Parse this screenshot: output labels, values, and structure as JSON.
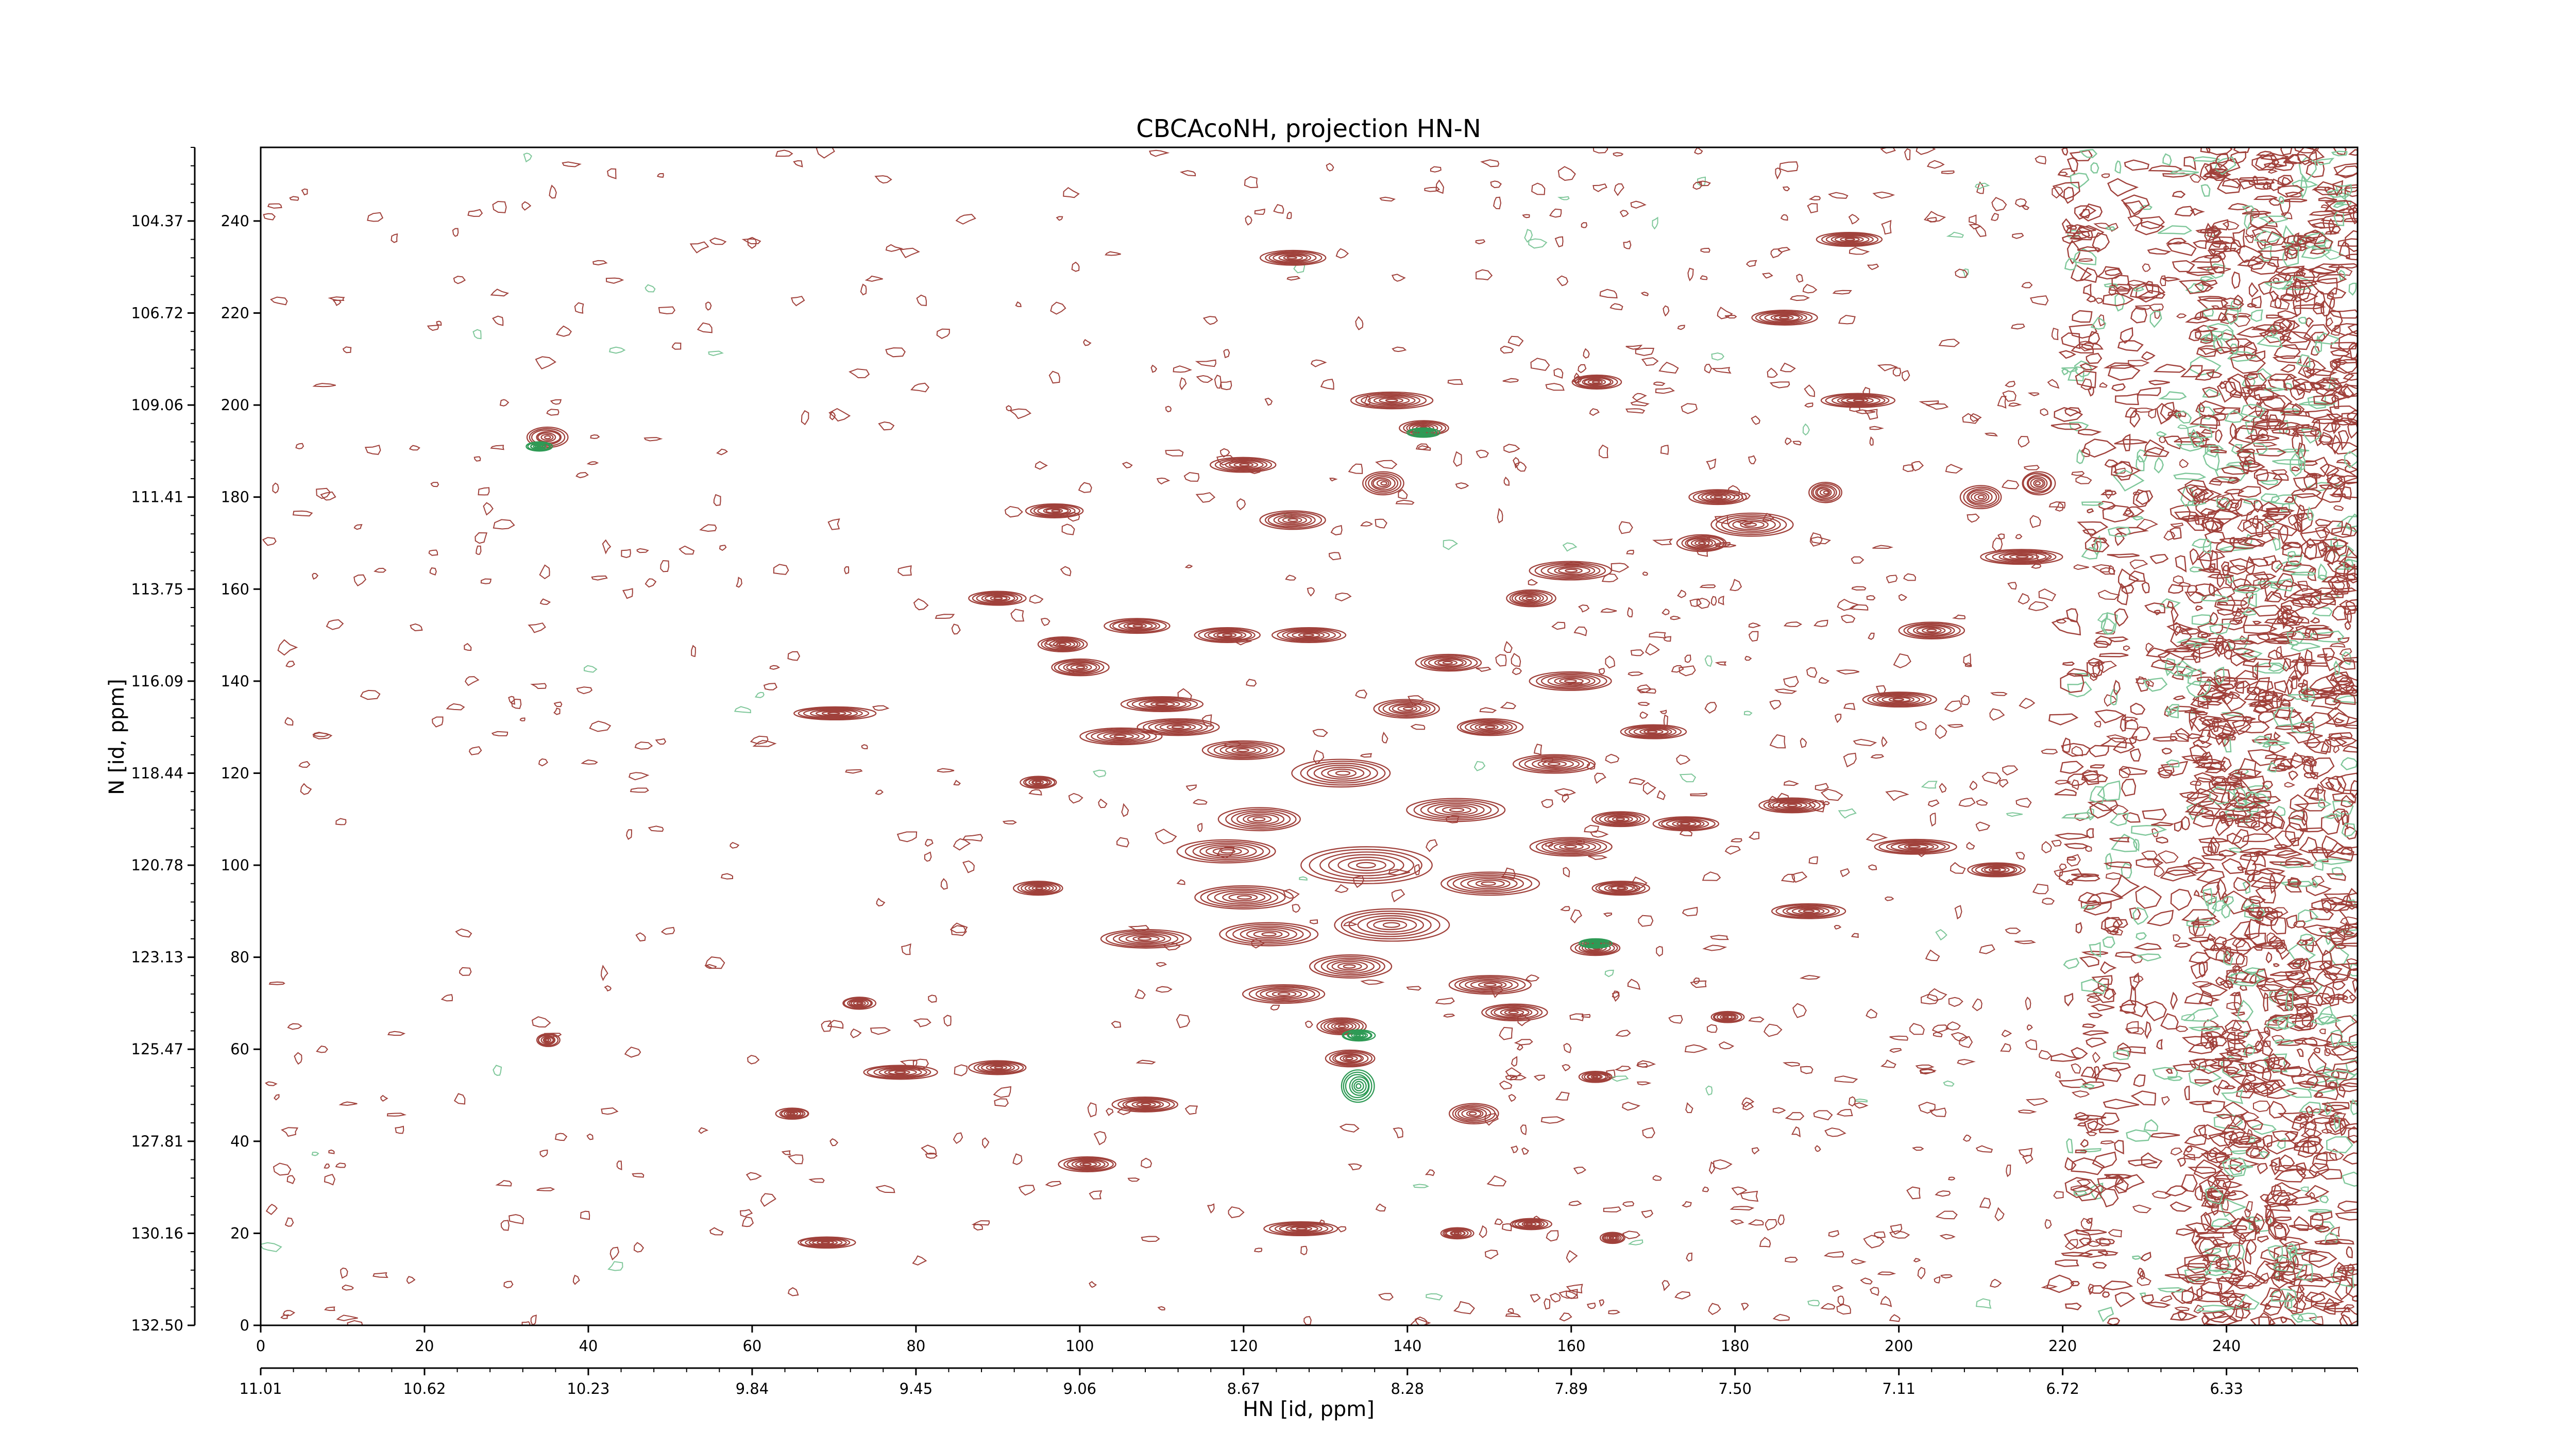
{
  "chart_data": {
    "type": "contour",
    "title": "CBCAcoNH, projection HN-N",
    "xlabel": "HN [id, ppm]",
    "ylabel": "N [id, ppm]",
    "xlim": [
      0,
      256
    ],
    "ylim": [
      0,
      256
    ],
    "x_index_ticks": [
      "0",
      "20",
      "40",
      "60",
      "80",
      "100",
      "120",
      "140",
      "160",
      "180",
      "200",
      "220",
      "240"
    ],
    "x_ppm_ticks": [
      "11.01",
      "10.62",
      "10.23",
      "9.84",
      "9.45",
      "9.06",
      "8.67",
      "8.28",
      "7.89",
      "7.50",
      "7.11",
      "6.72",
      "6.33"
    ],
    "y_index_ticks": [
      "0",
      "20",
      "40",
      "60",
      "80",
      "100",
      "120",
      "140",
      "160",
      "180",
      "200",
      "220",
      "240"
    ],
    "y_ppm_ticks": [
      "132.50",
      "130.16",
      "127.81",
      "125.47",
      "123.13",
      "120.78",
      "118.44",
      "116.09",
      "113.75",
      "111.41",
      "109.06",
      "106.72",
      "104.37"
    ],
    "grid": false,
    "legend": "none",
    "colors": {
      "positive": "#a0413b",
      "negative": "#2e9a55",
      "negative_light": "#7fc79a",
      "axes": "#000000"
    },
    "peaks": [
      {
        "x": 35,
        "y": 193,
        "w": 2.5,
        "h": 2.2,
        "sign": "pos"
      },
      {
        "x": 34,
        "y": 191,
        "w": 1.6,
        "h": 1.0,
        "sign": "neg"
      },
      {
        "x": 35,
        "y": 62,
        "w": 1.4,
        "h": 1.4,
        "sign": "pos"
      },
      {
        "x": 70,
        "y": 133,
        "w": 5,
        "h": 1.4,
        "sign": "pos"
      },
      {
        "x": 69,
        "y": 18,
        "w": 3.5,
        "h": 1.2,
        "sign": "pos"
      },
      {
        "x": 78,
        "y": 55,
        "w": 4.5,
        "h": 1.5,
        "sign": "pos"
      },
      {
        "x": 73,
        "y": 70,
        "w": 2,
        "h": 1.3,
        "sign": "pos"
      },
      {
        "x": 65,
        "y": 46,
        "w": 2,
        "h": 1.2,
        "sign": "pos"
      },
      {
        "x": 90,
        "y": 56,
        "w": 3.5,
        "h": 1.5,
        "sign": "pos"
      },
      {
        "x": 90,
        "y": 158,
        "w": 3.5,
        "h": 1.5,
        "sign": "pos"
      },
      {
        "x": 95,
        "y": 118,
        "w": 2.2,
        "h": 1.3,
        "sign": "pos"
      },
      {
        "x": 95,
        "y": 95,
        "w": 3,
        "h": 1.5,
        "sign": "pos"
      },
      {
        "x": 97,
        "y": 177,
        "w": 3.5,
        "h": 1.5,
        "sign": "pos"
      },
      {
        "x": 98,
        "y": 148,
        "w": 3,
        "h": 1.6,
        "sign": "pos"
      },
      {
        "x": 100,
        "y": 143,
        "w": 3.5,
        "h": 1.8,
        "sign": "pos"
      },
      {
        "x": 101,
        "y": 35,
        "w": 3.5,
        "h": 1.6,
        "sign": "pos"
      },
      {
        "x": 105,
        "y": 128,
        "w": 5,
        "h": 1.8,
        "sign": "pos"
      },
      {
        "x": 107,
        "y": 152,
        "w": 4,
        "h": 1.6,
        "sign": "pos"
      },
      {
        "x": 108,
        "y": 84,
        "w": 5.5,
        "h": 2,
        "sign": "pos"
      },
      {
        "x": 108,
        "y": 48,
        "w": 4,
        "h": 1.6,
        "sign": "pos"
      },
      {
        "x": 110,
        "y": 135,
        "w": 5,
        "h": 1.6,
        "sign": "pos"
      },
      {
        "x": 112,
        "y": 130,
        "w": 5,
        "h": 1.8,
        "sign": "pos"
      },
      {
        "x": 118,
        "y": 150,
        "w": 4,
        "h": 1.6,
        "sign": "pos"
      },
      {
        "x": 120,
        "y": 187,
        "w": 4,
        "h": 1.6,
        "sign": "pos"
      },
      {
        "x": 120,
        "y": 125,
        "w": 5,
        "h": 2,
        "sign": "pos"
      },
      {
        "x": 122,
        "y": 110,
        "w": 5,
        "h": 2.5,
        "sign": "pos"
      },
      {
        "x": 118,
        "y": 103,
        "w": 6,
        "h": 2.5,
        "sign": "pos"
      },
      {
        "x": 120,
        "y": 93,
        "w": 6,
        "h": 2.5,
        "sign": "pos"
      },
      {
        "x": 123,
        "y": 85,
        "w": 6,
        "h": 2.5,
        "sign": "pos"
      },
      {
        "x": 125,
        "y": 72,
        "w": 5,
        "h": 2,
        "sign": "pos"
      },
      {
        "x": 126,
        "y": 232,
        "w": 4,
        "h": 1.6,
        "sign": "pos"
      },
      {
        "x": 127,
        "y": 21,
        "w": 4.5,
        "h": 1.5,
        "sign": "pos"
      },
      {
        "x": 128,
        "y": 150,
        "w": 4.5,
        "h": 1.6,
        "sign": "pos"
      },
      {
        "x": 126,
        "y": 175,
        "w": 4,
        "h": 2,
        "sign": "pos"
      },
      {
        "x": 132,
        "y": 120,
        "w": 6,
        "h": 3,
        "sign": "pos"
      },
      {
        "x": 135,
        "y": 100,
        "w": 8,
        "h": 4,
        "sign": "pos"
      },
      {
        "x": 138,
        "y": 87,
        "w": 7,
        "h": 3.5,
        "sign": "pos"
      },
      {
        "x": 133,
        "y": 78,
        "w": 5,
        "h": 2.5,
        "sign": "pos"
      },
      {
        "x": 132,
        "y": 65,
        "w": 3,
        "h": 1.8,
        "sign": "pos"
      },
      {
        "x": 133,
        "y": 58,
        "w": 3,
        "h": 1.8,
        "sign": "pos"
      },
      {
        "x": 134,
        "y": 52,
        "w": 2,
        "h": 3.5,
        "sign": "neg"
      },
      {
        "x": 134,
        "y": 63,
        "w": 2,
        "h": 1.2,
        "sign": "neg"
      },
      {
        "x": 138,
        "y": 201,
        "w": 5,
        "h": 1.8,
        "sign": "pos"
      },
      {
        "x": 142,
        "y": 195,
        "w": 3,
        "h": 1.6,
        "sign": "pos"
      },
      {
        "x": 142,
        "y": 194,
        "w": 2,
        "h": 1.0,
        "sign": "neg"
      },
      {
        "x": 137,
        "y": 183,
        "w": 2.5,
        "h": 2.5,
        "sign": "pos"
      },
      {
        "x": 140,
        "y": 134,
        "w": 4,
        "h": 2,
        "sign": "pos"
      },
      {
        "x": 145,
        "y": 144,
        "w": 4,
        "h": 1.8,
        "sign": "pos"
      },
      {
        "x": 146,
        "y": 112,
        "w": 6,
        "h": 2.5,
        "sign": "pos"
      },
      {
        "x": 150,
        "y": 96,
        "w": 6,
        "h": 2.5,
        "sign": "pos"
      },
      {
        "x": 150,
        "y": 74,
        "w": 5,
        "h": 2,
        "sign": "pos"
      },
      {
        "x": 153,
        "y": 68,
        "w": 4,
        "h": 1.8,
        "sign": "pos"
      },
      {
        "x": 148,
        "y": 46,
        "w": 3,
        "h": 2.2,
        "sign": "pos"
      },
      {
        "x": 146,
        "y": 20,
        "w": 2,
        "h": 1.2,
        "sign": "pos"
      },
      {
        "x": 155,
        "y": 22,
        "w": 2.5,
        "h": 1.2,
        "sign": "pos"
      },
      {
        "x": 155,
        "y": 158,
        "w": 3,
        "h": 1.8,
        "sign": "pos"
      },
      {
        "x": 150,
        "y": 130,
        "w": 4,
        "h": 1.8,
        "sign": "pos"
      },
      {
        "x": 158,
        "y": 122,
        "w": 5,
        "h": 2,
        "sign": "pos"
      },
      {
        "x": 160,
        "y": 140,
        "w": 5,
        "h": 2,
        "sign": "pos"
      },
      {
        "x": 160,
        "y": 104,
        "w": 5,
        "h": 2,
        "sign": "pos"
      },
      {
        "x": 160,
        "y": 164,
        "w": 5,
        "h": 2,
        "sign": "pos"
      },
      {
        "x": 163,
        "y": 205,
        "w": 3,
        "h": 1.5,
        "sign": "pos"
      },
      {
        "x": 163,
        "y": 82,
        "w": 3,
        "h": 1.6,
        "sign": "pos"
      },
      {
        "x": 163,
        "y": 83,
        "w": 2,
        "h": 1.0,
        "sign": "neg"
      },
      {
        "x": 163,
        "y": 54,
        "w": 2,
        "h": 1.2,
        "sign": "pos"
      },
      {
        "x": 165,
        "y": 19,
        "w": 1.5,
        "h": 1.2,
        "sign": "pos"
      },
      {
        "x": 166,
        "y": 110,
        "w": 3.5,
        "h": 1.6,
        "sign": "pos"
      },
      {
        "x": 166,
        "y": 95,
        "w": 3.5,
        "h": 1.5,
        "sign": "pos"
      },
      {
        "x": 170,
        "y": 129,
        "w": 4,
        "h": 1.5,
        "sign": "pos"
      },
      {
        "x": 174,
        "y": 109,
        "w": 4,
        "h": 1.5,
        "sign": "pos"
      },
      {
        "x": 178,
        "y": 180,
        "w": 3.5,
        "h": 1.6,
        "sign": "pos"
      },
      {
        "x": 176,
        "y": 170,
        "w": 3,
        "h": 1.8,
        "sign": "pos"
      },
      {
        "x": 182,
        "y": 174,
        "w": 5,
        "h": 2.5,
        "sign": "pos"
      },
      {
        "x": 179,
        "y": 67,
        "w": 2,
        "h": 1.2,
        "sign": "pos"
      },
      {
        "x": 186,
        "y": 219,
        "w": 4,
        "h": 1.6,
        "sign": "pos"
      },
      {
        "x": 187,
        "y": 113,
        "w": 4,
        "h": 1.6,
        "sign": "pos"
      },
      {
        "x": 189,
        "y": 90,
        "w": 4.5,
        "h": 1.6,
        "sign": "pos"
      },
      {
        "x": 191,
        "y": 181,
        "w": 2,
        "h": 2.2,
        "sign": "pos"
      },
      {
        "x": 194,
        "y": 236,
        "w": 4,
        "h": 1.5,
        "sign": "pos"
      },
      {
        "x": 195,
        "y": 201,
        "w": 4.5,
        "h": 1.5,
        "sign": "pos"
      },
      {
        "x": 200,
        "y": 136,
        "w": 4.5,
        "h": 1.6,
        "sign": "pos"
      },
      {
        "x": 202,
        "y": 104,
        "w": 5,
        "h": 1.6,
        "sign": "pos"
      },
      {
        "x": 204,
        "y": 151,
        "w": 4,
        "h": 1.8,
        "sign": "pos"
      },
      {
        "x": 210,
        "y": 180,
        "w": 2.5,
        "h": 2.5,
        "sign": "pos"
      },
      {
        "x": 212,
        "y": 99,
        "w": 3.5,
        "h": 1.5,
        "sign": "pos"
      },
      {
        "x": 215,
        "y": 167,
        "w": 5,
        "h": 1.6,
        "sign": "pos"
      },
      {
        "x": 217,
        "y": 183,
        "w": 2,
        "h": 2.5,
        "sign": "pos"
      }
    ]
  }
}
